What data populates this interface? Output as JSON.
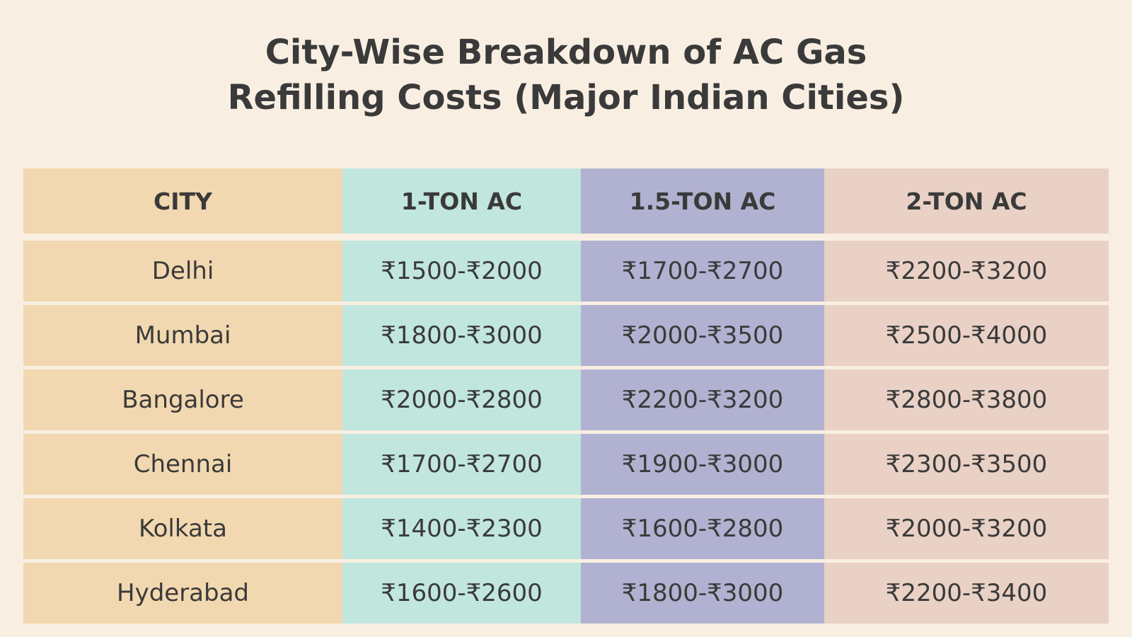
{
  "title": [
    "City-Wise Breakdown of AC Gas",
    "Refilling Costs (Major Indian Cities)"
  ],
  "table": {
    "header": [
      "CITY",
      "1-TON AC",
      "1.5-TON AC",
      "2-TON AC"
    ],
    "rows": [
      [
        "Delhi",
        "₹1500-₹2000",
        "₹1700-₹2700",
        "₹2200-₹3200"
      ],
      [
        "Mumbai",
        "₹1800-₹3000",
        "₹2000-₹3500",
        "₹2500-₹4000"
      ],
      [
        "Bangalore",
        "₹2000-₹2800",
        "₹2200-₹3200",
        "₹2800-₹3800"
      ],
      [
        "Chennai",
        "₹1700-₹2700",
        "₹1900-₹3000",
        "₹2300-₹3500"
      ],
      [
        "Kolkata",
        "₹1400-₹2300",
        "₹1600-₹2800",
        "₹2000-₹3200"
      ],
      [
        "Hyderabad",
        "₹1600-₹2600",
        "₹1800-₹3000",
        "₹2200-₹3400"
      ]
    ]
  }
}
